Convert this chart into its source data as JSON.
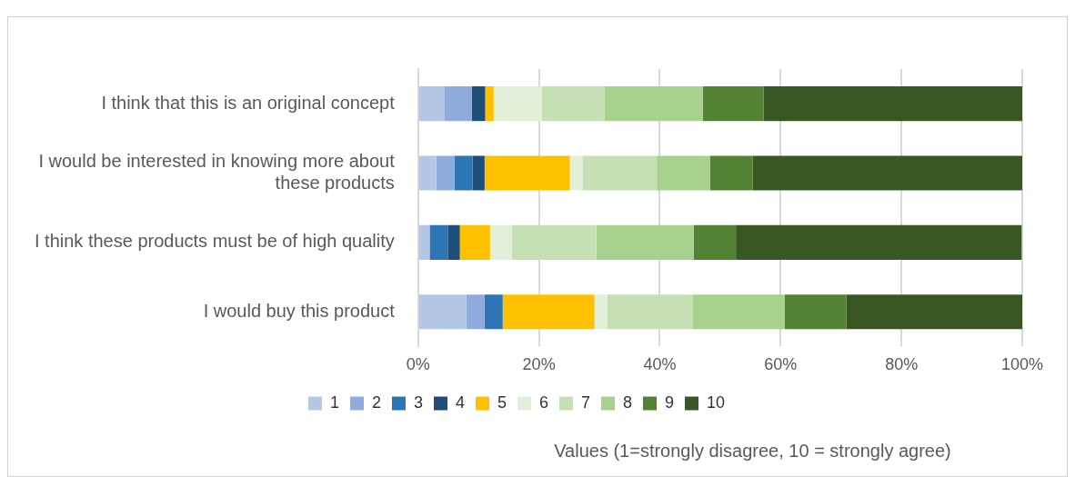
{
  "chart_data": {
    "type": "bar",
    "orientation": "horizontal",
    "stacked": true,
    "categories": [
      "I think that this is an original concept",
      "I would be interested in knowing more about these products",
      "I think these products must be of high quality",
      "I would buy this product"
    ],
    "series": [
      {
        "name": "1",
        "color": "#b4c7e7",
        "values": [
          4.3,
          3.0,
          1.9,
          8.0
        ]
      },
      {
        "name": "2",
        "color": "#8faadc",
        "values": [
          4.6,
          3.0,
          0,
          3.0
        ]
      },
      {
        "name": "3",
        "color": "#2e75b6",
        "values": [
          0,
          3.0,
          3.0,
          3.0
        ]
      },
      {
        "name": "4",
        "color": "#1f4e79",
        "values": [
          2.2,
          2.0,
          2.0,
          0
        ]
      },
      {
        "name": "5",
        "color": "#ffc000",
        "values": [
          1.4,
          14.1,
          5.0,
          15.2
        ]
      },
      {
        "name": "6",
        "color": "#e2f0d9",
        "values": [
          8.0,
          2.1,
          3.6,
          2.1
        ]
      },
      {
        "name": "7",
        "color": "#c5e0b4",
        "values": [
          10.3,
          12.3,
          14.0,
          14.2
        ]
      },
      {
        "name": "8",
        "color": "#a9d18e",
        "values": [
          16.3,
          8.8,
          16.1,
          15.2
        ]
      },
      {
        "name": "9",
        "color": "#548235",
        "values": [
          10.1,
          7.1,
          7.0,
          10.2
        ]
      },
      {
        "name": "10",
        "color": "#385723",
        "values": [
          42.8,
          44.6,
          47.3,
          29.2
        ]
      }
    ],
    "xlim": [
      0,
      100
    ],
    "xticks": [
      {
        "value": 0,
        "label": "0%"
      },
      {
        "value": 20,
        "label": "20%"
      },
      {
        "value": 40,
        "label": "40%"
      },
      {
        "value": 60,
        "label": "60%"
      },
      {
        "value": 80,
        "label": "80%"
      },
      {
        "value": 100,
        "label": "100%"
      }
    ],
    "xlabel": "Values (1=strongly disagree, 10 = strongly agree)",
    "grid": "x",
    "legend": "bottom"
  }
}
